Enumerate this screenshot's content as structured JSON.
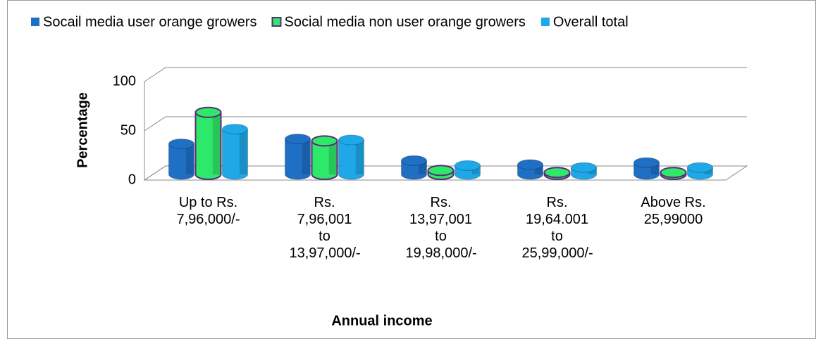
{
  "chart_data": {
    "type": "bar3d",
    "categories": [
      "Up to Rs. 7,96,000/-",
      "Rs. 7,96,001 to 13,97,000/-",
      "Rs. 13,97,001 to 19,98,000/-",
      "Rs. 19,64.001 to 25,99,000/-",
      "Above Rs. 25,99000"
    ],
    "series": [
      {
        "name": "Socail media user orange growers",
        "color": "#1f6fc5",
        "values": [
          31,
          36,
          14,
          10,
          12
        ]
      },
      {
        "name": "Social media non user orange growers",
        "color": "#2ee86a",
        "values": [
          63,
          34,
          4,
          2,
          2
        ]
      },
      {
        "name": "Overall total",
        "color": "#1fa8e8",
        "values": [
          46,
          35,
          9,
          7,
          7
        ]
      }
    ],
    "ylim": [
      0,
      100
    ],
    "yticks": [
      0,
      50,
      100
    ],
    "grid": true,
    "y_label": "Percentage",
    "x_label": "Annual income",
    "legend": "top"
  }
}
